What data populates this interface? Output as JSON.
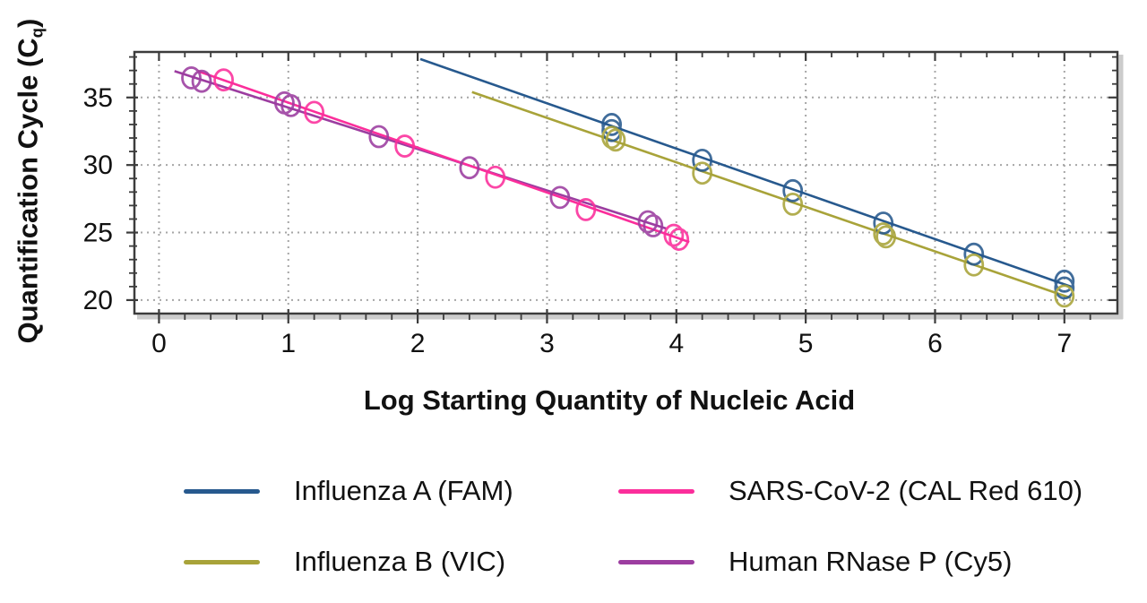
{
  "chart_data": {
    "type": "scatter",
    "title": "",
    "xlabel": "Log Starting Quantity of Nucleic Acid",
    "ylabel": "Quantification Cycle (Cq)",
    "ylabel_parts": {
      "prefix": "Quantification Cycle (C",
      "sub": "q",
      "suffix": ")"
    },
    "xlim": [
      -0.19,
      7.41
    ],
    "ylim": [
      19.0,
      38.37
    ],
    "xticks": [
      0,
      1,
      2,
      3,
      4,
      5,
      6,
      7
    ],
    "yticks": [
      20,
      25,
      30,
      35
    ],
    "x_minor_step": 0.2,
    "y_minor_step": 1,
    "grid": true,
    "grid_style": "dotted",
    "legend_position": "bottom",
    "marker": "open-circle",
    "series": [
      {
        "name": "Influenza A (FAM)",
        "color": "#27598e",
        "points": [
          [
            3.5,
            33.0
          ],
          [
            3.5,
            32.55
          ],
          [
            4.2,
            30.35
          ],
          [
            4.9,
            28.1
          ],
          [
            5.6,
            25.7
          ],
          [
            6.3,
            23.4
          ],
          [
            7.0,
            21.4
          ],
          [
            7.0,
            20.9
          ]
        ],
        "trendline": [
          [
            2.02,
            37.85
          ],
          [
            7.05,
            21.0
          ]
        ]
      },
      {
        "name": "Influenza B (VIC)",
        "color": "#a8a339",
        "points": [
          [
            3.5,
            32.05
          ],
          [
            3.53,
            31.85
          ],
          [
            4.2,
            29.4
          ],
          [
            4.9,
            27.1
          ],
          [
            5.6,
            24.9
          ],
          [
            5.62,
            24.68
          ],
          [
            6.3,
            22.6
          ],
          [
            7.0,
            20.3
          ]
        ],
        "trendline": [
          [
            2.42,
            35.4
          ],
          [
            7.05,
            20.15
          ]
        ]
      },
      {
        "name": "SARS-CoV-2 (CAL Red 610)",
        "color": "#fb2e9b",
        "points": [
          [
            0.5,
            36.3
          ],
          [
            1.2,
            33.9
          ],
          [
            1.9,
            31.4
          ],
          [
            2.6,
            29.1
          ],
          [
            3.3,
            26.7
          ],
          [
            3.98,
            24.8
          ],
          [
            4.02,
            24.5
          ]
        ],
        "trendline": [
          [
            0.3,
            36.95
          ],
          [
            4.1,
            24.3
          ]
        ]
      },
      {
        "name": "Human RNase P (Cy5)",
        "color": "#9c3da0",
        "points": [
          [
            0.25,
            36.45
          ],
          [
            0.33,
            36.2
          ],
          [
            0.97,
            34.6
          ],
          [
            1.02,
            34.4
          ],
          [
            1.7,
            32.1
          ],
          [
            2.4,
            29.8
          ],
          [
            3.1,
            27.6
          ],
          [
            3.78,
            25.8
          ],
          [
            3.82,
            25.5
          ]
        ],
        "trendline": [
          [
            0.12,
            36.95
          ],
          [
            3.92,
            25.3
          ]
        ]
      }
    ]
  },
  "legend": {
    "items": [
      {
        "label": "Influenza A (FAM)",
        "series": 0
      },
      {
        "label": "SARS-CoV-2 (CAL Red 610)",
        "series": 2
      },
      {
        "label": "Influenza B (VIC)",
        "series": 1
      },
      {
        "label": "Human RNase P (Cy5)",
        "series": 3
      }
    ]
  },
  "colors": {
    "background": "#ffffff",
    "axis": "#3c3c3c",
    "axis_shadow": "#cccccc",
    "grid": "#a6a6a6",
    "text": "#111111"
  }
}
